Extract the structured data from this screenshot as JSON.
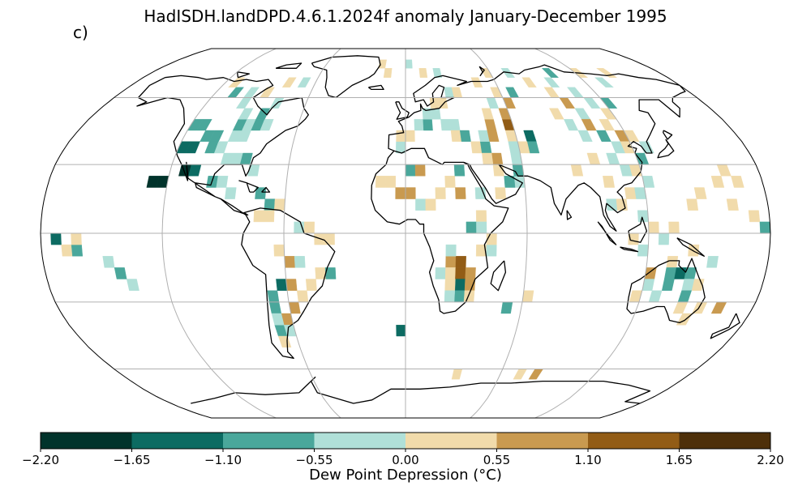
{
  "title": "HadISDH.landDPD.4.6.1.2024f anomaly January-December 1995",
  "panel_label": "c)",
  "colorbar": {
    "label": "Dew Point Depression (°C)",
    "ticks": [
      "−2.20",
      "−1.65",
      "−1.10",
      "−0.55",
      "0.00",
      "0.55",
      "1.10",
      "1.65",
      "2.20"
    ],
    "colors": [
      "#01332b",
      "#0c6b62",
      "#4aa79b",
      "#b0e0d8",
      "#f1dbab",
      "#c99a50",
      "#925c16",
      "#4e300a"
    ]
  },
  "map": {
    "projection": "Robinson",
    "gridlines": true,
    "ocean_color": "#ffffff",
    "land_outline": "#000000",
    "cells": [
      [
        "a",
        20,
        -130
      ],
      [
        "a",
        20,
        -125
      ],
      [
        "a",
        25,
        -115
      ],
      [
        "b",
        25,
        -110
      ],
      [
        "c",
        45,
        -120
      ],
      [
        "c",
        45,
        -115
      ],
      [
        "c",
        40,
        -110
      ],
      [
        "c",
        40,
        -105
      ],
      [
        "b",
        35,
        -120
      ],
      [
        "b",
        35,
        -115
      ],
      [
        "c",
        35,
        -105
      ],
      [
        "d",
        35,
        -100
      ],
      [
        "d",
        40,
        -95
      ],
      [
        "d",
        40,
        -90
      ],
      [
        "c",
        45,
        -95
      ],
      [
        "d",
        45,
        -90
      ],
      [
        "c",
        45,
        -85
      ],
      [
        "d",
        45,
        -80
      ],
      [
        "d",
        50,
        -95
      ],
      [
        "c",
        50,
        -85
      ],
      [
        "d",
        55,
        -100
      ],
      [
        "d",
        55,
        -80
      ],
      [
        "c",
        60,
        -110
      ],
      [
        "d",
        60,
        -100
      ],
      [
        "e",
        60,
        -90
      ],
      [
        "e",
        65,
        -115
      ],
      [
        "e",
        65,
        -80
      ],
      [
        "d",
        65,
        -70
      ],
      [
        "d",
        30,
        -95
      ],
      [
        "d",
        30,
        -90
      ],
      [
        "c",
        30,
        -85
      ],
      [
        "d",
        25,
        -80
      ],
      [
        "c",
        20,
        -100
      ],
      [
        "d",
        20,
        -95
      ],
      [
        "d",
        15,
        -90
      ],
      [
        "c",
        15,
        -75
      ],
      [
        "c",
        10,
        -70
      ],
      [
        "e",
        10,
        -65
      ],
      [
        "e",
        5,
        -75
      ],
      [
        "e",
        5,
        -70
      ],
      [
        "d",
        0,
        -55
      ],
      [
        "e",
        0,
        -50
      ],
      [
        "e",
        -5,
        -45
      ],
      [
        "e",
        -5,
        -40
      ],
      [
        "e",
        -10,
        -65
      ],
      [
        "f",
        -15,
        -60
      ],
      [
        "d",
        -15,
        -55
      ],
      [
        "e",
        -20,
        -45
      ],
      [
        "c",
        -20,
        -40
      ],
      [
        "e",
        -25,
        -50
      ],
      [
        "f",
        -25,
        -60
      ],
      [
        "e",
        -30,
        -55
      ],
      [
        "f",
        -35,
        -60
      ],
      [
        "f",
        -40,
        -65
      ],
      [
        "c",
        -45,
        -70
      ],
      [
        "e",
        -50,
        -70
      ],
      [
        "d",
        -45,
        -65
      ],
      [
        "c",
        -30,
        -70
      ],
      [
        "b",
        -25,
        -65
      ],
      [
        "c",
        -35,
        -70
      ],
      [
        "d",
        -40,
        -70
      ],
      [
        "e",
        20,
        -15
      ],
      [
        "e",
        20,
        -10
      ],
      [
        "f",
        15,
        -5
      ],
      [
        "f",
        15,
        0
      ],
      [
        "d",
        10,
        5
      ],
      [
        "e",
        10,
        10
      ],
      [
        "c",
        25,
        0
      ],
      [
        "f",
        25,
        5
      ],
      [
        "e",
        20,
        20
      ],
      [
        "e",
        15,
        15
      ],
      [
        "f",
        15,
        25
      ],
      [
        "d",
        15,
        35
      ],
      [
        "c",
        25,
        25
      ],
      [
        "e",
        5,
        35
      ],
      [
        "c",
        0,
        30
      ],
      [
        "d",
        0,
        35
      ],
      [
        "f",
        -15,
        20
      ],
      [
        "g",
        -15,
        25
      ],
      [
        "d",
        -20,
        15
      ],
      [
        "e",
        -20,
        20
      ],
      [
        "g",
        -20,
        25
      ],
      [
        "f",
        -20,
        30
      ],
      [
        "b",
        -25,
        25
      ],
      [
        "e",
        -25,
        20
      ],
      [
        "f",
        -25,
        30
      ],
      [
        "c",
        -30,
        25
      ],
      [
        "d",
        -30,
        20
      ],
      [
        "e",
        -30,
        30
      ],
      [
        "d",
        -10,
        20
      ],
      [
        "e",
        -10,
        35
      ],
      [
        "d",
        -10,
        40
      ],
      [
        "e",
        -5,
        40
      ],
      [
        "d",
        35,
        -5
      ],
      [
        "e",
        40,
        -5
      ],
      [
        "e",
        40,
        0
      ],
      [
        "d",
        45,
        5
      ],
      [
        "c",
        45,
        10
      ],
      [
        "d",
        50,
        10
      ],
      [
        "d",
        50,
        15
      ],
      [
        "e",
        55,
        15
      ],
      [
        "e",
        55,
        20
      ],
      [
        "d",
        60,
        25
      ],
      [
        "e",
        60,
        30
      ],
      [
        "d",
        45,
        20
      ],
      [
        "d",
        45,
        25
      ],
      [
        "e",
        40,
        25
      ],
      [
        "c",
        40,
        30
      ],
      [
        "e",
        35,
        35
      ],
      [
        "c",
        35,
        40
      ],
      [
        "d",
        40,
        40
      ],
      [
        "f",
        40,
        45
      ],
      [
        "f",
        45,
        45
      ],
      [
        "g",
        45,
        55
      ],
      [
        "e",
        50,
        45
      ],
      [
        "f",
        50,
        55
      ],
      [
        "d",
        55,
        50
      ],
      [
        "f",
        55,
        60
      ],
      [
        "e",
        60,
        55
      ],
      [
        "c",
        60,
        65
      ],
      [
        "e",
        40,
        55
      ],
      [
        "b",
        40,
        65
      ],
      [
        "c",
        35,
        65
      ],
      [
        "e",
        35,
        60
      ],
      [
        "d",
        35,
        55
      ],
      [
        "d",
        30,
        55
      ],
      [
        "f",
        30,
        45
      ],
      [
        "e",
        30,
        40
      ],
      [
        "e",
        25,
        45
      ],
      [
        "d",
        20,
        55
      ],
      [
        "c",
        20,
        50
      ],
      [
        "c",
        25,
        55
      ],
      [
        "e",
        15,
        45
      ],
      [
        "e",
        65,
        45
      ],
      [
        "e",
        70,
        55
      ],
      [
        "d",
        70,
        70
      ],
      [
        "e",
        65,
        80
      ],
      [
        "d",
        65,
        95
      ],
      [
        "e",
        60,
        90
      ],
      [
        "d",
        60,
        105
      ],
      [
        "f",
        55,
        95
      ],
      [
        "d",
        55,
        110
      ],
      [
        "c",
        55,
        120
      ],
      [
        "e",
        50,
        115
      ],
      [
        "d",
        50,
        100
      ],
      [
        "e",
        50,
        85
      ],
      [
        "d",
        45,
        90
      ],
      [
        "f",
        45,
        100
      ],
      [
        "e",
        45,
        110
      ],
      [
        "d",
        40,
        95
      ],
      [
        "c",
        40,
        105
      ],
      [
        "f",
        40,
        115
      ],
      [
        "e",
        40,
        120
      ],
      [
        "d",
        35,
        110
      ],
      [
        "e",
        35,
        115
      ],
      [
        "d",
        35,
        125
      ],
      [
        "c",
        30,
        120
      ],
      [
        "d",
        30,
        105
      ],
      [
        "e",
        30,
        95
      ],
      [
        "e",
        25,
        85
      ],
      [
        "d",
        25,
        110
      ],
      [
        "e",
        25,
        115
      ],
      [
        "e",
        20,
        100
      ],
      [
        "d",
        20,
        120
      ],
      [
        "e",
        15,
        110
      ],
      [
        "d",
        15,
        115
      ],
      [
        "d",
        10,
        100
      ],
      [
        "e",
        10,
        105
      ],
      [
        "d",
        5,
        115
      ],
      [
        "e",
        0,
        120
      ],
      [
        "e",
        -5,
        110
      ],
      [
        "d",
        -5,
        125
      ],
      [
        "e",
        0,
        130
      ],
      [
        "d",
        -10,
        115
      ],
      [
        "e",
        -10,
        140
      ],
      [
        "d",
        -15,
        150
      ],
      [
        "e",
        -15,
        130
      ],
      [
        "f",
        -20,
        120
      ],
      [
        "c",
        -20,
        130
      ],
      [
        "b",
        -20,
        135
      ],
      [
        "c",
        -20,
        140
      ],
      [
        "d",
        -25,
        120
      ],
      [
        "e",
        -25,
        145
      ],
      [
        "c",
        -25,
        130
      ],
      [
        "d",
        -25,
        140
      ],
      [
        "e",
        -30,
        115
      ],
      [
        "d",
        -30,
        125
      ],
      [
        "c",
        -30,
        140
      ],
      [
        "e",
        -35,
        140
      ],
      [
        "e",
        -35,
        150
      ],
      [
        "f",
        -35,
        160
      ],
      [
        "e",
        -40,
        145
      ],
      [
        "e",
        10,
        140
      ],
      [
        "e",
        15,
        145
      ],
      [
        "e",
        20,
        155
      ],
      [
        "e",
        25,
        160
      ],
      [
        "e",
        20,
        165
      ],
      [
        "e",
        10,
        160
      ],
      [
        "e",
        5,
        170
      ],
      [
        "c",
        0,
        175
      ],
      [
        "b",
        -5,
        -175
      ],
      [
        "e",
        -10,
        -170
      ],
      [
        "c",
        -10,
        -165
      ],
      [
        "e",
        -5,
        -165
      ],
      [
        "d",
        -15,
        -150
      ],
      [
        "c",
        -20,
        -145
      ],
      [
        "d",
        -25,
        -140
      ],
      [
        "b",
        -45,
        -5
      ],
      [
        "c",
        -35,
        50
      ],
      [
        "e",
        -30,
        60
      ],
      [
        "e",
        -65,
        30
      ],
      [
        "f",
        -65,
        80
      ],
      [
        "e",
        -65,
        70
      ],
      [
        "e",
        70,
        -15
      ],
      [
        "e",
        70,
        10
      ],
      [
        "e",
        75,
        -20
      ],
      [
        "d",
        75,
        0
      ],
      [
        "d",
        70,
        20
      ],
      [
        "e",
        70,
        120
      ],
      [
        "e",
        70,
        140
      ],
      [
        "c",
        70,
        100
      ],
      [
        "d",
        65,
        130
      ]
    ]
  }
}
